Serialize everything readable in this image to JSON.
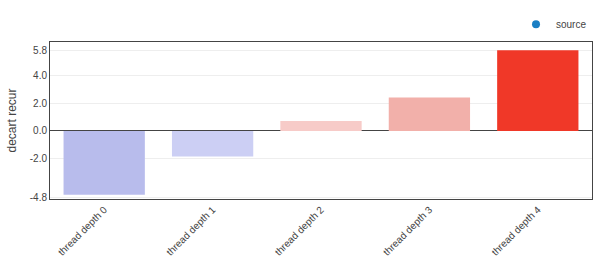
{
  "chart_data": {
    "type": "bar",
    "categories": [
      "thread depth 0",
      "thread depth 1",
      "thread depth 2",
      "thread depth 3",
      "thread depth 4"
    ],
    "series": [
      {
        "name": "source",
        "color": "#1a7fc4",
        "marker": "circle",
        "values": [
          -4.6,
          -1.85,
          0.72,
          2.4,
          5.8
        ],
        "colors": [
          "#b8bcec",
          "#cccff4",
          "#f7cbc8",
          "#f2b0aa",
          "#f03828"
        ]
      }
    ],
    "ylabel": "decart recur",
    "ylim": [
      -4.9,
      6.4
    ],
    "yticks": [
      -4.8,
      {
        "value": -2,
        "label": "-2.0"
      },
      {
        "value": 0,
        "label": "0.0"
      },
      {
        "value": 2,
        "label": "2.0"
      },
      {
        "value": 4,
        "label": "4.0"
      },
      5.8
    ],
    "grid": true,
    "legend": "upper right"
  }
}
